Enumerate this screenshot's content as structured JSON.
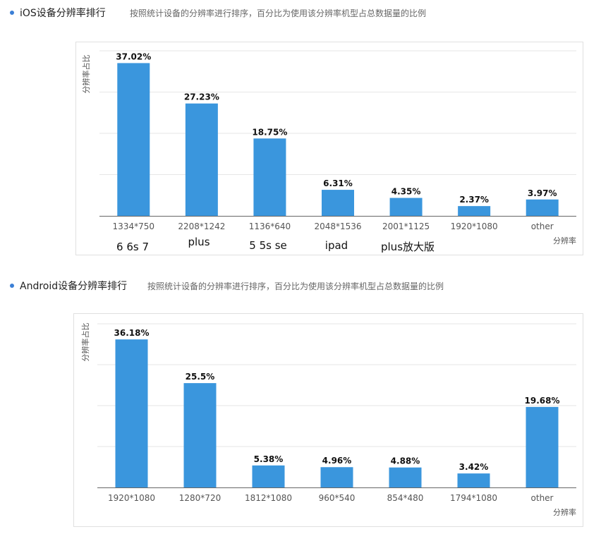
{
  "sections": {
    "ios": {
      "title": "iOS设备分辨率排行",
      "description": "按照统计设备的分辨率进行排序，百分比为使用该分辨率机型占总数据量的比例",
      "model_labels": [
        "6 6s 7",
        "plus",
        "5 5s se",
        "ipad",
        "plus放大版"
      ]
    },
    "android": {
      "title": "Android设备分辨率排行",
      "description": "按照统计设备的分辨率进行排序，百分比为使用该分辨率机型占总数据量的比例"
    }
  },
  "colors": {
    "bar": "#3a96dd",
    "bullet": "#3b7fd6"
  },
  "chart_data": [
    {
      "type": "bar",
      "categories": [
        "1334*750",
        "2208*1242",
        "1136*640",
        "2048*1536",
        "2001*1125",
        "1920*1080",
        "other"
      ],
      "values": [
        37.02,
        27.23,
        18.75,
        6.31,
        4.35,
        2.37,
        3.97
      ],
      "value_labels": [
        "37.02%",
        "27.23%",
        "18.75%",
        "6.31%",
        "4.35%",
        "2.37%",
        "3.97%"
      ],
      "xlabel": "分辨率",
      "ylabel": "分辨率占比",
      "ylim": [
        0,
        40
      ],
      "grid": true
    },
    {
      "type": "bar",
      "categories": [
        "1920*1080",
        "1280*720",
        "1812*1080",
        "960*540",
        "854*480",
        "1794*1080",
        "other"
      ],
      "values": [
        36.18,
        25.5,
        5.38,
        4.96,
        4.88,
        3.42,
        19.68
      ],
      "value_labels": [
        "36.18%",
        "25.5%",
        "5.38%",
        "4.96%",
        "4.88%",
        "3.42%",
        "19.68%"
      ],
      "xlabel": "分辨率",
      "ylabel": "分辨率占比",
      "ylim": [
        0,
        40
      ],
      "grid": true
    }
  ]
}
